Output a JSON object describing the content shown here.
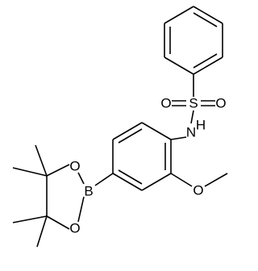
{
  "atoms": [
    {
      "label": "O"
    },
    {
      "label": "S"
    },
    {
      "label": "O"
    },
    {
      "label": "N"
    },
    {
      "label": "H"
    },
    {
      "label": "O"
    },
    {
      "label": "B"
    },
    {
      "label": "O"
    },
    {
      "label": "O"
    }
  ]
}
